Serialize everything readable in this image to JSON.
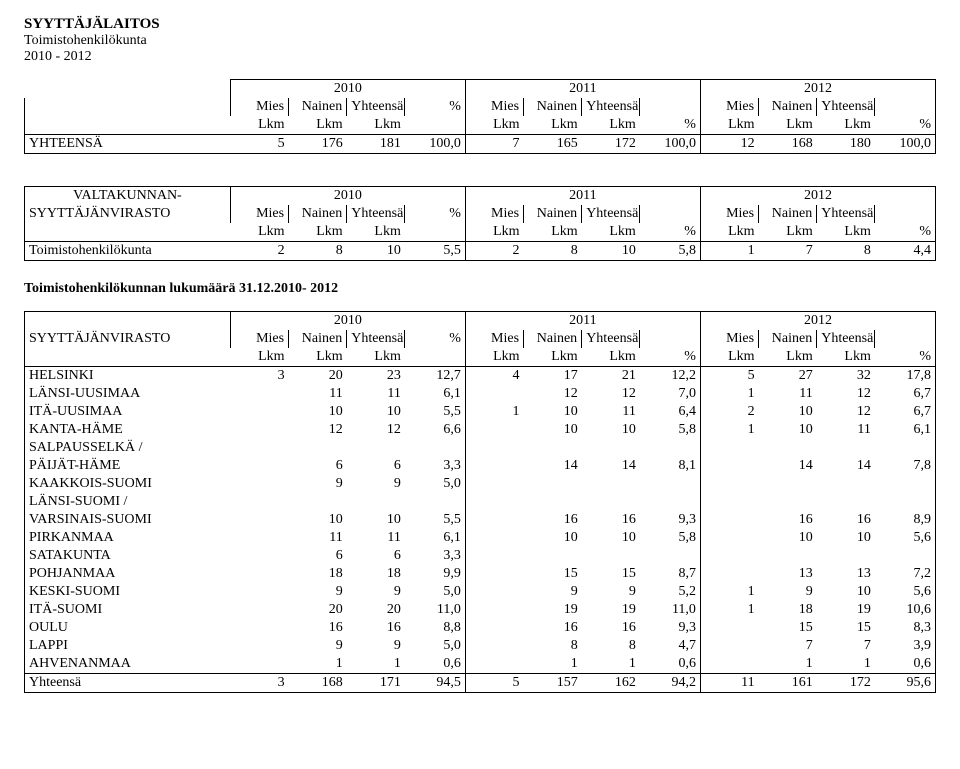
{
  "header": {
    "title": "SYYTTÄJÄLAITOS",
    "subtitle1": "Toimistohenkilökunta",
    "subtitle2": "2010 - 2012"
  },
  "years": [
    "2010",
    "2011",
    "2012"
  ],
  "colheads": {
    "mies": "Mies",
    "nainen": "Nainen",
    "yhteensa": "Yhteensä",
    "pct": "%",
    "lkm": "Lkm"
  },
  "table1": {
    "label_row1": "",
    "total_label": "YHTEENSÄ",
    "total": [
      "5",
      "176",
      "181",
      "100,0",
      "7",
      "165",
      "172",
      "100,0",
      "12",
      "168",
      "180",
      "100,0"
    ]
  },
  "table2": {
    "label1": "VALTAKUNNAN-",
    "label2": "SYYTTÄJÄNVIRASTO",
    "row_label": "Toimistohenkilökunta",
    "row": [
      "2",
      "8",
      "10",
      "5,5",
      "2",
      "8",
      "10",
      "5,8",
      "1",
      "7",
      "8",
      "4,4"
    ]
  },
  "table3": {
    "title": "Toimistohenkilökunnan lukumäärä 31.12.2010- 2012",
    "label2": "SYYTTÄJÄNVIRASTO",
    "rows": [
      {
        "label": "HELSINKI",
        "v": [
          "3",
          "20",
          "23",
          "12,7",
          "4",
          "17",
          "21",
          "12,2",
          "5",
          "27",
          "32",
          "17,8"
        ]
      },
      {
        "label": "LÄNSI-UUSIMAA",
        "v": [
          "",
          "11",
          "11",
          "6,1",
          "",
          "12",
          "12",
          "7,0",
          "1",
          "11",
          "12",
          "6,7"
        ]
      },
      {
        "label": "ITÄ-UUSIMAA",
        "v": [
          "",
          "10",
          "10",
          "5,5",
          "1",
          "10",
          "11",
          "6,4",
          "2",
          "10",
          "12",
          "6,7"
        ]
      },
      {
        "label": "KANTA-HÄME",
        "v": [
          "",
          "12",
          "12",
          "6,6",
          "",
          "10",
          "10",
          "5,8",
          "1",
          "10",
          "11",
          "6,1"
        ]
      },
      {
        "label": "SALPAUSSELKÄ /",
        "v": [
          "",
          "",
          "",
          "",
          "",
          "",
          "",
          "",
          "",
          "",
          "",
          ""
        ]
      },
      {
        "label": "PÄIJÄT-HÄME",
        "v": [
          "",
          "6",
          "6",
          "3,3",
          "",
          "14",
          "14",
          "8,1",
          "",
          "14",
          "14",
          "7,8"
        ]
      },
      {
        "label": "KAAKKOIS-SUOMI",
        "v": [
          "",
          "9",
          "9",
          "5,0",
          "",
          "",
          "",
          "",
          "",
          "",
          "",
          ""
        ]
      },
      {
        "label": "LÄNSI-SUOMI /",
        "v": [
          "",
          "",
          "",
          "",
          "",
          "",
          "",
          "",
          "",
          "",
          "",
          ""
        ]
      },
      {
        "label": "VARSINAIS-SUOMI",
        "v": [
          "",
          "10",
          "10",
          "5,5",
          "",
          "16",
          "16",
          "9,3",
          "",
          "16",
          "16",
          "8,9"
        ]
      },
      {
        "label": "PIRKANMAA",
        "v": [
          "",
          "11",
          "11",
          "6,1",
          "",
          "10",
          "10",
          "5,8",
          "",
          "10",
          "10",
          "5,6"
        ]
      },
      {
        "label": "SATAKUNTA",
        "v": [
          "",
          "6",
          "6",
          "3,3",
          "",
          "",
          "",
          "",
          "",
          "",
          "",
          ""
        ]
      },
      {
        "label": "POHJANMAA",
        "v": [
          "",
          "18",
          "18",
          "9,9",
          "",
          "15",
          "15",
          "8,7",
          "",
          "13",
          "13",
          "7,2"
        ]
      },
      {
        "label": "KESKI-SUOMI",
        "v": [
          "",
          "9",
          "9",
          "5,0",
          "",
          "9",
          "9",
          "5,2",
          "1",
          "9",
          "10",
          "5,6"
        ]
      },
      {
        "label": "ITÄ-SUOMI",
        "v": [
          "",
          "20",
          "20",
          "11,0",
          "",
          "19",
          "19",
          "11,0",
          "1",
          "18",
          "19",
          "10,6"
        ]
      },
      {
        "label": "OULU",
        "v": [
          "",
          "16",
          "16",
          "8,8",
          "",
          "16",
          "16",
          "9,3",
          "",
          "15",
          "15",
          "8,3"
        ]
      },
      {
        "label": "LAPPI",
        "v": [
          "",
          "9",
          "9",
          "5,0",
          "",
          "8",
          "8",
          "4,7",
          "",
          "7",
          "7",
          "3,9"
        ]
      },
      {
        "label": "AHVENANMAA",
        "v": [
          "",
          "1",
          "1",
          "0,6",
          "",
          "1",
          "1",
          "0,6",
          "",
          "1",
          "1",
          "0,6"
        ]
      }
    ],
    "total_label": "Yhteensä",
    "total": [
      "3",
      "168",
      "171",
      "94,5",
      "5",
      "157",
      "162",
      "94,2",
      "11",
      "161",
      "172",
      "95,6"
    ]
  }
}
